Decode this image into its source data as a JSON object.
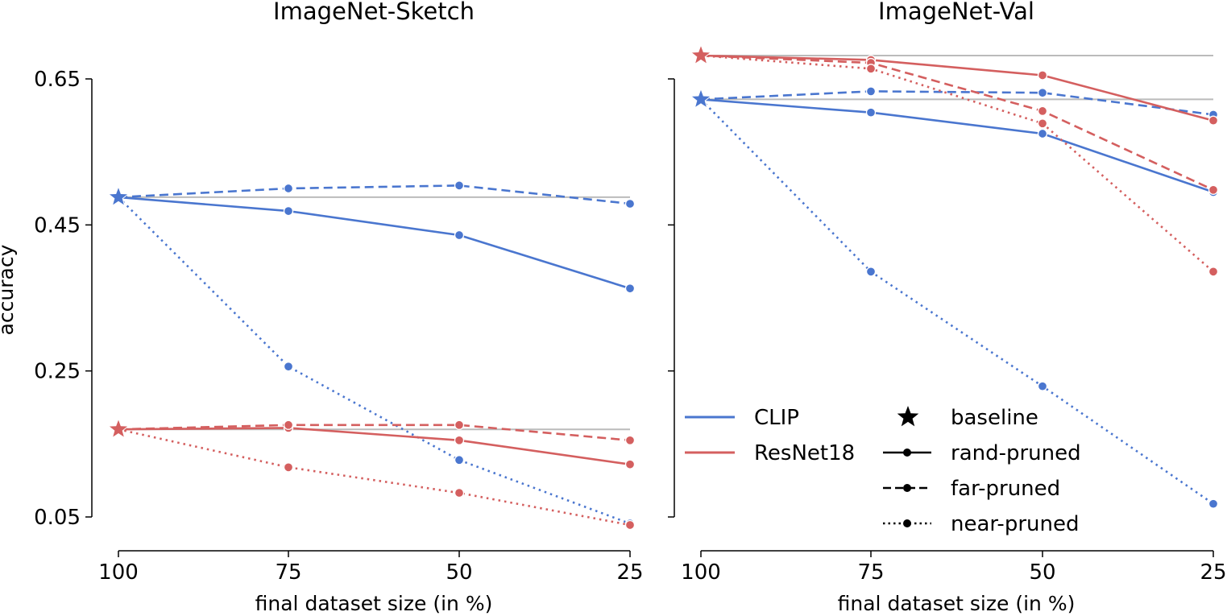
{
  "colors": {
    "CLIP": "#4a76cf",
    "ResNet18": "#d45f5f",
    "baseline_line": "#bbbbbb"
  },
  "chart_data": [
    {
      "type": "line",
      "title": "ImageNet-Sketch",
      "xlabel": "final dataset size (in %)",
      "ylabel": "accuracy",
      "x": [
        100,
        75,
        50,
        25
      ],
      "x_tick_labels": [
        "100",
        "75",
        "50",
        "25"
      ],
      "xlim": [
        100,
        25
      ],
      "ylim": [
        0.05,
        0.65
      ],
      "y_ticks": [
        0.05,
        0.25,
        0.45,
        0.65
      ],
      "y_tick_labels": [
        "0.05",
        "0.25",
        "0.45",
        "0.65"
      ],
      "baselines": [
        {
          "model": "CLIP",
          "value": 0.488
        },
        {
          "model": "ResNet18",
          "value": 0.17
        }
      ],
      "series": [
        {
          "model": "CLIP",
          "method": "rand-pruned",
          "values": [
            0.488,
            0.469,
            0.436,
            0.363
          ]
        },
        {
          "model": "CLIP",
          "method": "far-pruned",
          "values": [
            0.488,
            0.5,
            0.504,
            0.479
          ]
        },
        {
          "model": "CLIP",
          "method": "near-pruned",
          "values": [
            0.488,
            0.256,
            0.128,
            0.041
          ]
        },
        {
          "model": "ResNet18",
          "method": "rand-pruned",
          "values": [
            0.17,
            0.172,
            0.155,
            0.122
          ]
        },
        {
          "model": "ResNet18",
          "method": "far-pruned",
          "values": [
            0.17,
            0.176,
            0.176,
            0.155
          ]
        },
        {
          "model": "ResNet18",
          "method": "near-pruned",
          "values": [
            0.17,
            0.118,
            0.083,
            0.039
          ]
        }
      ]
    },
    {
      "type": "line",
      "title": "ImageNet-Val",
      "xlabel": "final dataset size (in %)",
      "ylabel": "",
      "x": [
        100,
        75,
        50,
        25
      ],
      "x_tick_labels": [
        "100",
        "75",
        "50",
        "25"
      ],
      "xlim": [
        100,
        25
      ],
      "ylim": [
        0.05,
        0.65
      ],
      "y_ticks": [
        0.05,
        0.25,
        0.45,
        0.65
      ],
      "y_tick_labels": [
        "",
        "",
        "",
        ""
      ],
      "baselines": [
        {
          "model": "CLIP",
          "value": 0.622
        },
        {
          "model": "ResNet18",
          "value": 0.682
        }
      ],
      "series": [
        {
          "model": "CLIP",
          "method": "rand-pruned",
          "values": [
            0.622,
            0.604,
            0.575,
            0.495
          ]
        },
        {
          "model": "CLIP",
          "method": "far-pruned",
          "values": [
            0.622,
            0.633,
            0.631,
            0.601
          ]
        },
        {
          "model": "CLIP",
          "method": "near-pruned",
          "values": [
            0.622,
            0.386,
            0.229,
            0.068
          ]
        },
        {
          "model": "ResNet18",
          "method": "rand-pruned",
          "values": [
            0.682,
            0.676,
            0.655,
            0.593
          ]
        },
        {
          "model": "ResNet18",
          "method": "far-pruned",
          "values": [
            0.682,
            0.672,
            0.606,
            0.498
          ]
        },
        {
          "model": "ResNet18",
          "method": "near-pruned",
          "values": [
            0.682,
            0.664,
            0.589,
            0.386
          ]
        }
      ]
    }
  ],
  "legend": {
    "models": [
      {
        "label": "CLIP",
        "key": "CLIP"
      },
      {
        "label": "ResNet18",
        "key": "ResNet18"
      }
    ],
    "methods": [
      {
        "label": "baseline",
        "key": "baseline"
      },
      {
        "label": "rand-pruned",
        "key": "rand-pruned"
      },
      {
        "label": "far-pruned",
        "key": "far-pruned"
      },
      {
        "label": "near-pruned",
        "key": "near-pruned"
      }
    ]
  }
}
